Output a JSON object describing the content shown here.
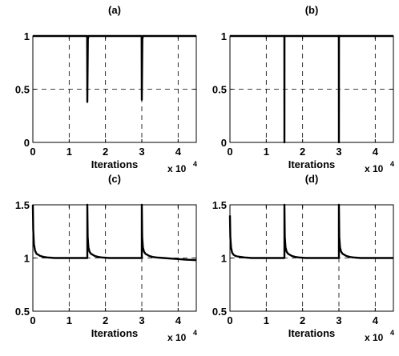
{
  "chart_data": [
    {
      "type": "line",
      "title": "(a)",
      "xlabel": "Iterations",
      "x_multiplier": "x 10",
      "x_multiplier_exp": "4",
      "xlim": [
        0,
        45000
      ],
      "ylim": [
        0,
        1
      ],
      "xticks": [
        0,
        10000,
        20000,
        30000,
        40000
      ],
      "xtick_labels": [
        "0",
        "1",
        "2",
        "3",
        "4"
      ],
      "yticks": [
        0,
        0.5,
        1
      ],
      "ytick_labels": [
        "0",
        "0.5",
        "1"
      ],
      "grid": true,
      "series": [
        {
          "x": [
            0,
            14950,
            15000,
            15150,
            15300,
            15400,
            29950,
            30000,
            30150,
            30300,
            30400,
            45000
          ],
          "y": [
            1,
            1,
            0.38,
            0.97,
            1,
            1,
            1,
            0.4,
            0.97,
            1,
            1,
            1
          ]
        }
      ]
    },
    {
      "type": "line",
      "title": "(b)",
      "xlabel": "Iterations",
      "x_multiplier": "x 10",
      "x_multiplier_exp": "4",
      "xlim": [
        0,
        45000
      ],
      "ylim": [
        0,
        1
      ],
      "xticks": [
        0,
        10000,
        20000,
        30000,
        40000
      ],
      "xtick_labels": [
        "0",
        "1",
        "2",
        "3",
        "4"
      ],
      "yticks": [
        0,
        0.5,
        1
      ],
      "ytick_labels": [
        "0",
        "0.5",
        "1"
      ],
      "grid": true,
      "series": [
        {
          "x": [
            0,
            14980,
            15000,
            15020,
            29980,
            30000,
            30020,
            45000
          ],
          "y": [
            1,
            1,
            0,
            1,
            1,
            0,
            1,
            1
          ]
        }
      ]
    },
    {
      "type": "line",
      "title": "(c)",
      "xlabel": "Iterations",
      "x_multiplier": "x 10",
      "x_multiplier_exp": "4",
      "xlim": [
        0,
        45000
      ],
      "ylim": [
        0.5,
        1.5
      ],
      "xticks": [
        0,
        10000,
        20000,
        30000,
        40000
      ],
      "xtick_labels": [
        "0",
        "1",
        "2",
        "3",
        "4"
      ],
      "yticks": [
        0.5,
        1,
        1.5
      ],
      "ytick_labels": [
        "0.5",
        "1",
        "1.5"
      ],
      "grid": true,
      "series": [
        {
          "x": [
            0,
            100,
            300,
            600,
            1000,
            1500,
            2000,
            3000,
            4000,
            6000,
            8000,
            15000,
            15000,
            15100,
            15300,
            15600,
            16000,
            16500,
            17000,
            18000,
            19000,
            21000,
            23000,
            30000,
            30000,
            30100,
            30300,
            30600,
            31000,
            31500,
            32000,
            33000,
            34000,
            36000,
            38000,
            40000,
            42000,
            45000
          ],
          "y": [
            1.5,
            1.27,
            1.13,
            1.07,
            1.04,
            1.03,
            1.02,
            1.01,
            1.005,
            1.0,
            1.0,
            1.0,
            1.5,
            1.2,
            1.1,
            1.06,
            1.04,
            1.03,
            1.02,
            1.01,
            1.005,
            1.0,
            1.0,
            1.0,
            1.5,
            1.2,
            1.1,
            1.06,
            1.04,
            1.03,
            1.02,
            1.01,
            1.005,
            1.0,
            0.995,
            0.99,
            0.985,
            0.98
          ]
        }
      ]
    },
    {
      "type": "line",
      "title": "(d)",
      "xlabel": "Iterations",
      "x_multiplier": "x 10",
      "x_multiplier_exp": "4",
      "xlim": [
        0,
        45000
      ],
      "ylim": [
        0.5,
        1.5
      ],
      "xticks": [
        0,
        10000,
        20000,
        30000,
        40000
      ],
      "xtick_labels": [
        "0",
        "1",
        "2",
        "3",
        "4"
      ],
      "yticks": [
        0.5,
        1,
        1.5
      ],
      "ytick_labels": [
        "0.5",
        "1",
        "1.5"
      ],
      "grid": true,
      "series": [
        {
          "x": [
            0,
            100,
            300,
            600,
            1000,
            1500,
            2000,
            3000,
            4000,
            6000,
            8000,
            15000,
            15000,
            15100,
            15300,
            15600,
            16000,
            16500,
            17000,
            18000,
            19000,
            21000,
            23000,
            30000,
            30000,
            30100,
            30300,
            30600,
            31000,
            31500,
            32000,
            33000,
            34000,
            36000,
            40000,
            45000
          ],
          "y": [
            1.4,
            1.2,
            1.1,
            1.05,
            1.03,
            1.02,
            1.015,
            1.01,
            1.005,
            1.0,
            1.0,
            1.0,
            1.5,
            1.2,
            1.1,
            1.06,
            1.04,
            1.03,
            1.02,
            1.01,
            1.005,
            1.0,
            1.0,
            1.0,
            1.5,
            1.2,
            1.1,
            1.06,
            1.04,
            1.03,
            1.02,
            1.01,
            1.005,
            1.0,
            1.0,
            1.0
          ]
        }
      ]
    }
  ]
}
